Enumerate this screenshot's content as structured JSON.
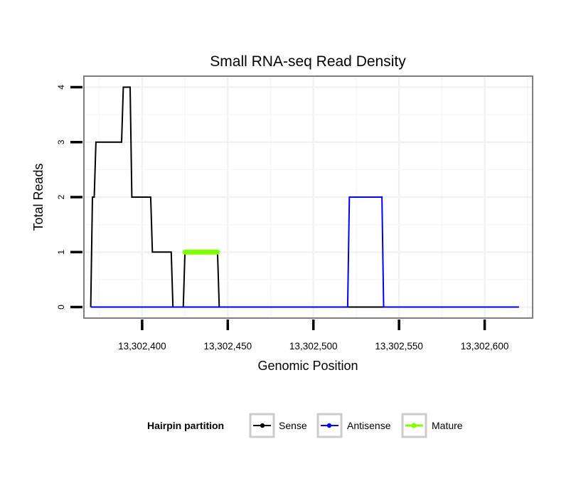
{
  "chart_data": {
    "type": "line",
    "title": "Small RNA-seq Read Density",
    "xlabel": "Genomic Position",
    "ylabel": "Total Reads",
    "xlim": [
      13302366,
      13302628
    ],
    "ylim": [
      -0.2,
      4.2
    ],
    "x_ticks": [
      13302400,
      13302450,
      13302500,
      13302550,
      13302600
    ],
    "x_tick_labels": [
      "13,302,400",
      "13,302,450",
      "13,302,500",
      "13,302,550",
      "13,302,600"
    ],
    "y_ticks": [
      0,
      1,
      2,
      3,
      4
    ],
    "y_tick_labels": [
      "0",
      "1",
      "2",
      "3",
      "4"
    ],
    "grid": true,
    "legend": {
      "title": "Hairpin partition",
      "position": "bottom",
      "entries": [
        "Sense",
        "Antisense",
        "Mature"
      ]
    },
    "series": [
      {
        "name": "Sense",
        "color": "#000000",
        "x": [
          13302370,
          13302371,
          13302372,
          13302373,
          13302388,
          13302389,
          13302393,
          13302394,
          13302405,
          13302406,
          13302417,
          13302418,
          13302424,
          13302425,
          13302444,
          13302445,
          13302620
        ],
        "y": [
          0,
          2,
          2,
          3,
          3,
          4,
          4,
          2,
          2,
          1,
          1,
          0,
          0,
          1,
          1,
          0,
          0
        ]
      },
      {
        "name": "Antisense",
        "color": "#0000ff",
        "x": [
          13302370,
          13302520,
          13302521,
          13302540,
          13302541,
          13302620
        ],
        "y": [
          0,
          0,
          2,
          2,
          0,
          0
        ]
      },
      {
        "name": "Mature",
        "color": "#7fff00",
        "x": [
          13302425,
          13302444
        ],
        "y": [
          1,
          1
        ]
      }
    ]
  }
}
